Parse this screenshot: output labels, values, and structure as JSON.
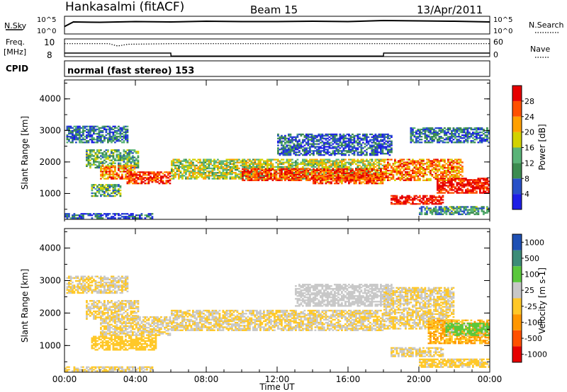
{
  "header": {
    "station": "Hankasalmi (fitACF)",
    "beam": "Beam 15",
    "date": "13/Apr/2011"
  },
  "side_labels": {
    "nsky": "N.Sky",
    "nsearch": "N.Search",
    "freq": "Freq.",
    "freq_unit": "[MHz]",
    "nave": "Nave",
    "cpid": "CPID"
  },
  "small_ticks": {
    "nsky_top": "10^5",
    "nsky_bottom": "10^0",
    "nsearch_top": "10^5",
    "nsearch_bottom": "10^0",
    "freq_top": "10",
    "freq_bottom": "8",
    "nave_top": "60",
    "nave_bottom": "0"
  },
  "cpid_text": "normal (fast stereo) 153",
  "colors": {
    "power_scale": [
      "#1e1ee6",
      "#2850c8",
      "#3c8c50",
      "#5ab478",
      "#d2d200",
      "#ffa000",
      "#ff5000",
      "#e60000"
    ],
    "velocity_scale": [
      "#e60000",
      "#ff5000",
      "#ff9600",
      "#ffc828",
      "#c8c8c8",
      "#5ac83c",
      "#3c8c78",
      "#1e50b4"
    ],
    "frame": "#000000"
  },
  "chart_data": [
    {
      "type": "heatmap",
      "name": "Power panel",
      "ylabel": "Slant Range [km]",
      "xlabel": "",
      "ylim": [
        180,
        4600
      ],
      "yticks": [
        "1000",
        "2000",
        "3000",
        "4000"
      ],
      "colorbar": {
        "label": "Power [dB]",
        "ticks": [
          "4",
          "8",
          "12",
          "16",
          "20",
          "24",
          "28"
        ],
        "range": [
          0,
          30
        ]
      },
      "bands": [
        {
          "t0": 0.1,
          "t1": 3.6,
          "r0": 2600,
          "r1": 3150,
          "level": 8
        },
        {
          "t0": 1.2,
          "t1": 4.2,
          "r0": 1800,
          "r1": 2400,
          "level": 12
        },
        {
          "t0": 2.0,
          "t1": 4.0,
          "r0": 1450,
          "r1": 1900,
          "level": 22
        },
        {
          "t0": 3.5,
          "t1": 6.0,
          "r0": 1300,
          "r1": 1700,
          "level": 26
        },
        {
          "t0": 1.5,
          "t1": 3.2,
          "r0": 900,
          "r1": 1300,
          "level": 12
        },
        {
          "t0": 6.0,
          "t1": 18.0,
          "r0": 1450,
          "r1": 2100,
          "level": 16
        },
        {
          "t0": 10.0,
          "t1": 18.0,
          "r0": 1400,
          "r1": 1800,
          "level": 26
        },
        {
          "t0": 12.0,
          "t1": 18.5,
          "r0": 2200,
          "r1": 2900,
          "level": 6
        },
        {
          "t0": 14.0,
          "t1": 18.0,
          "r0": 1300,
          "r1": 1600,
          "level": 24
        },
        {
          "t0": 18.0,
          "t1": 22.5,
          "r0": 1400,
          "r1": 2100,
          "level": 22
        },
        {
          "t0": 18.4,
          "t1": 21.4,
          "r0": 650,
          "r1": 950,
          "level": 29
        },
        {
          "t0": 21.0,
          "t1": 24.0,
          "r0": 1000,
          "r1": 1500,
          "level": 28
        },
        {
          "t0": 19.5,
          "t1": 24.0,
          "r0": 2600,
          "r1": 3100,
          "level": 8
        },
        {
          "t0": 0.0,
          "t1": 5.0,
          "r0": 200,
          "r1": 380,
          "level": 6
        },
        {
          "t0": 20.0,
          "t1": 24.0,
          "r0": 320,
          "r1": 600,
          "level": 10
        }
      ]
    },
    {
      "type": "heatmap",
      "name": "Velocity panel",
      "ylabel": "Slant Range [km]",
      "xlabel": "Time UT",
      "ylim": [
        180,
        4600
      ],
      "yticks": [
        "1000",
        "2000",
        "3000",
        "4000"
      ],
      "xticks": [
        "00:00",
        "04:00",
        "08:00",
        "12:00",
        "16:00",
        "20:00",
        "00:00"
      ],
      "xlim": [
        0,
        24
      ],
      "colorbar": {
        "label": "Velocity [m s-1]",
        "ticks": [
          "1000",
          "500",
          "100",
          "25",
          "-25",
          "-100",
          "-500",
          "-1000"
        ],
        "range": [
          -1200,
          1200
        ]
      },
      "bands": [
        {
          "t0": 0.1,
          "t1": 3.6,
          "r0": 2600,
          "r1": 3150,
          "level": 0
        },
        {
          "t0": 1.2,
          "t1": 4.2,
          "r0": 1800,
          "r1": 2400,
          "level": 0
        },
        {
          "t0": 2.0,
          "t1": 6.0,
          "r0": 1300,
          "r1": 1900,
          "level": 0
        },
        {
          "t0": 1.5,
          "t1": 5.2,
          "r0": 850,
          "r1": 1300,
          "level": -150
        },
        {
          "t0": 6.0,
          "t1": 18.0,
          "r0": 1450,
          "r1": 2100,
          "level": 0
        },
        {
          "t0": 13.0,
          "t1": 18.5,
          "r0": 2200,
          "r1": 2900,
          "level": 150
        },
        {
          "t0": 18.0,
          "t1": 22.0,
          "r0": 1500,
          "r1": 2800,
          "level": 0
        },
        {
          "t0": 18.4,
          "t1": 21.4,
          "r0": 650,
          "r1": 950,
          "level": 0
        },
        {
          "t0": 20.5,
          "t1": 24.0,
          "r0": 1050,
          "r1": 1800,
          "level": -300
        },
        {
          "t0": 21.5,
          "t1": 24.0,
          "r0": 1300,
          "r1": 1700,
          "level": 400
        },
        {
          "t0": 0.0,
          "t1": 5.0,
          "r0": 200,
          "r1": 360,
          "level": 0
        },
        {
          "t0": 20.0,
          "t1": 24.0,
          "r0": 320,
          "r1": 600,
          "level": -80
        }
      ]
    },
    {
      "type": "line",
      "name": "Noise",
      "x": [
        0,
        0.5,
        2,
        4,
        6,
        8,
        10,
        12,
        14,
        16,
        18,
        20,
        22,
        24
      ],
      "series": [
        {
          "values": [
            2.1,
            3.4,
            3.3,
            3.5,
            3.4,
            3.6,
            3.5,
            3.5,
            3.6,
            3.5,
            3.8,
            3.7,
            3.6,
            3.4
          ]
        }
      ],
      "ylim": [
        0,
        5
      ]
    },
    {
      "type": "line",
      "name": "Freq / Nave",
      "x": [
        0,
        2.5,
        3.0,
        3.6,
        6.0,
        6.01,
        18.0,
        18.01,
        24
      ],
      "series": [
        {
          "values": [
            10.2,
            10.2,
            9.8,
            10.1,
            10.2,
            10.2,
            10.2,
            10.2,
            10.2
          ]
        },
        {
          "values": [
            8.6,
            8.6,
            8.6,
            8.6,
            8.6,
            8.1,
            8.1,
            8.6,
            8.6
          ]
        }
      ],
      "ylim": [
        8,
        11
      ]
    }
  ]
}
